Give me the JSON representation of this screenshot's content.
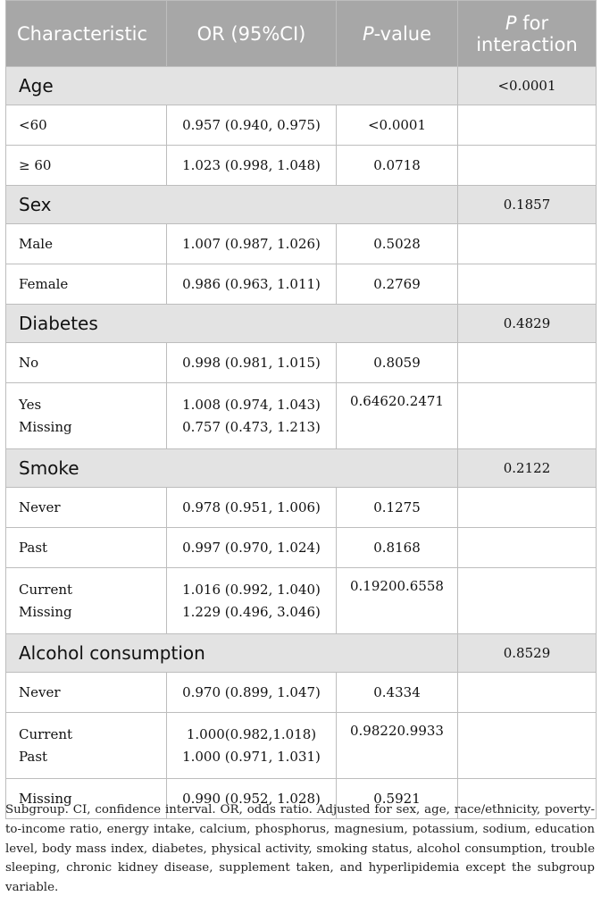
{
  "header": {
    "characteristic": "Characteristic",
    "or": "OR (95%CI)",
    "p_italic": "P",
    "p_rest": "-value",
    "pint_italic": "P",
    "pint_rest1": " for",
    "pint_rest2": "interaction"
  },
  "groups": {
    "age": {
      "title": "Age",
      "p_interaction": "<0.0001",
      "rows": [
        {
          "label": "<60",
          "or": "0.957 (0.940, 0.975)",
          "p": "<0.0001"
        },
        {
          "label": "≥ 60",
          "or": "1.023 (0.998, 1.048)",
          "p": "0.0718"
        }
      ]
    },
    "sex": {
      "title": "Sex",
      "p_interaction": "0.1857",
      "rows": [
        {
          "label": "Male",
          "or": "1.007 (0.987, 1.026)",
          "p": "0.5028"
        },
        {
          "label": "Female",
          "or": "0.986 (0.963, 1.011)",
          "p": "0.2769"
        }
      ]
    },
    "diabetes": {
      "title": "Diabetes",
      "p_interaction": "0.4829",
      "rows": [
        {
          "label": "No",
          "or": "0.998 (0.981, 1.015)",
          "p": "0.8059"
        }
      ],
      "merged": {
        "label1": "Yes",
        "label2": "Missing",
        "or1": "1.008 (0.974, 1.043)",
        "or2": "0.757 (0.473, 1.213)",
        "p": "0.64620.2471"
      }
    },
    "smoke": {
      "title": "Smoke",
      "p_interaction": "0.2122",
      "rows": [
        {
          "label": "Never",
          "or": "0.978 (0.951, 1.006)",
          "p": "0.1275"
        },
        {
          "label": "Past",
          "or": "0.997 (0.970, 1.024)",
          "p": "0.8168"
        }
      ],
      "merged": {
        "label1": "Current",
        "label2": "Missing",
        "or1": "1.016 (0.992, 1.040)",
        "or2": "1.229 (0.496, 3.046)",
        "p": "0.19200.6558"
      }
    },
    "alcohol": {
      "title": "Alcohol consumption",
      "p_interaction": "0.8529",
      "rows": [
        {
          "label": "Never",
          "or": "0.970 (0.899, 1.047)",
          "p": "0.4334"
        }
      ],
      "merged": {
        "label1": "Current",
        "label2": "Past",
        "or1": "1.000(0.982,1.018)",
        "or2": "1.000 (0.971, 1.031)",
        "p": "0.98220.9933"
      },
      "last": {
        "label": "Missing",
        "or": "0.990 (0.952, 1.028)",
        "p": "0.5921"
      }
    }
  },
  "footnote": "Subgroup. CI, confidence interval. OR, odds ratio. Adjusted for sex, age, race/ethnicity, poverty-to-income ratio, energy intake, calcium, phosphorus, magnesium, potassium, sodium, education level, body mass index, diabetes, physical activity, smoking status, alcohol consumption, trouble sleeping, chronic kidney disease, supplement taken, and hyperlipidemia except the subgroup variable."
}
